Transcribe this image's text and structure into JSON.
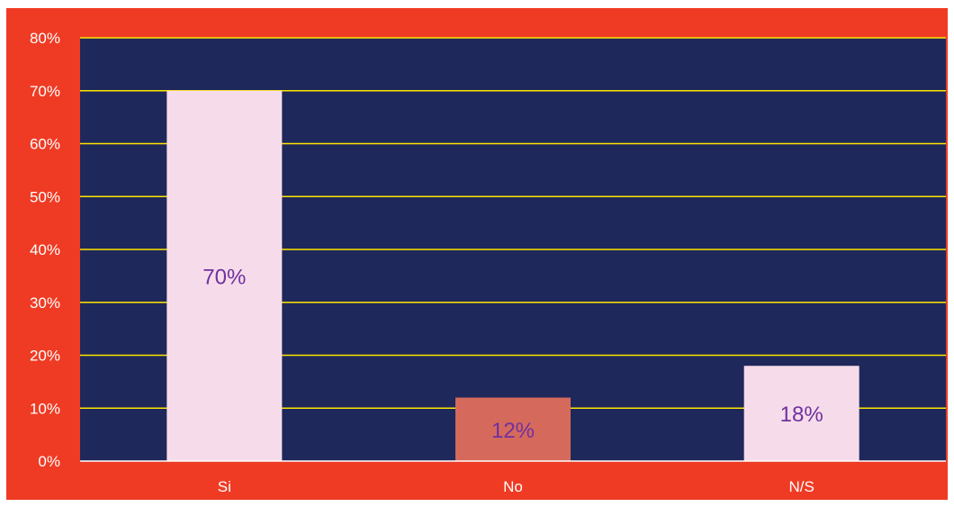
{
  "chart_data": {
    "type": "bar",
    "categories": [
      "Si",
      "No",
      "N/S"
    ],
    "values": [
      70,
      12,
      18
    ],
    "data_labels": [
      "70%",
      "12%",
      "18%"
    ],
    "bar_colors": [
      "#f6dcea",
      "#d56a5c",
      "#f6dcea"
    ],
    "ylim": [
      0,
      80
    ],
    "yticks": [
      0,
      10,
      20,
      30,
      40,
      50,
      60,
      70,
      80
    ],
    "ytick_labels": [
      "0%",
      "10%",
      "20%",
      "30%",
      "40%",
      "50%",
      "60%",
      "70%",
      "80%"
    ],
    "grid": true,
    "colors": {
      "frame_background": "#ef3b24",
      "plot_background": "#1f285a",
      "gridline": "#ffe600",
      "axis_line": "#ffffff",
      "tick_text": "#ffffff",
      "data_label_text": "#7030a0"
    }
  }
}
